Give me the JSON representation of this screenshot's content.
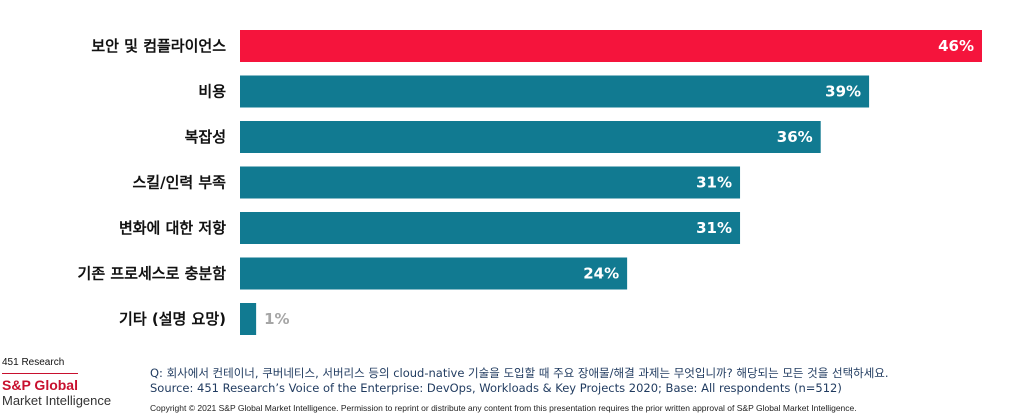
{
  "chart_data": {
    "type": "bar",
    "orientation": "horizontal",
    "categories": [
      "보안 및 컴플라이언스",
      "비용",
      "복잡성",
      "스킬/인력 부족",
      "변화에 대한 저항",
      "기존 프로세스로 충분함",
      "기타 (설명 요망)"
    ],
    "values": [
      46,
      39,
      36,
      31,
      31,
      24,
      1
    ],
    "value_labels": [
      "46%",
      "39%",
      "36%",
      "31%",
      "31%",
      "24%",
      "1%"
    ],
    "xlim": [
      0,
      46
    ],
    "colors": [
      "#f5143c",
      "#117a91",
      "#117a91",
      "#117a91",
      "#117a91",
      "#117a91",
      "#117a91"
    ],
    "grid": false,
    "legend": "none"
  },
  "footer": {
    "brand_research": "451 Research",
    "brand_sp": "S&P Global",
    "brand_mi": "Market Intelligence",
    "question": "Q: 회사에서 컨테이너, 쿠버네티스, 서버리스 등의 cloud-native 기술을 도입할 때 주요 장애물/해결 과제는 무엇입니까? 해당되는 모든 것을 선택하세요.",
    "source": "Source: 451 Research’s Voice of the Enterprise: DevOps, Workloads & Key Projects 2020; Base: All respondents (n=512)",
    "copyright": "Copyright © 2021 S&P Global Market Intelligence. Permission to reprint or distribute any content from this presentation requires the prior written approval of S&P Global Market Intelligence."
  }
}
